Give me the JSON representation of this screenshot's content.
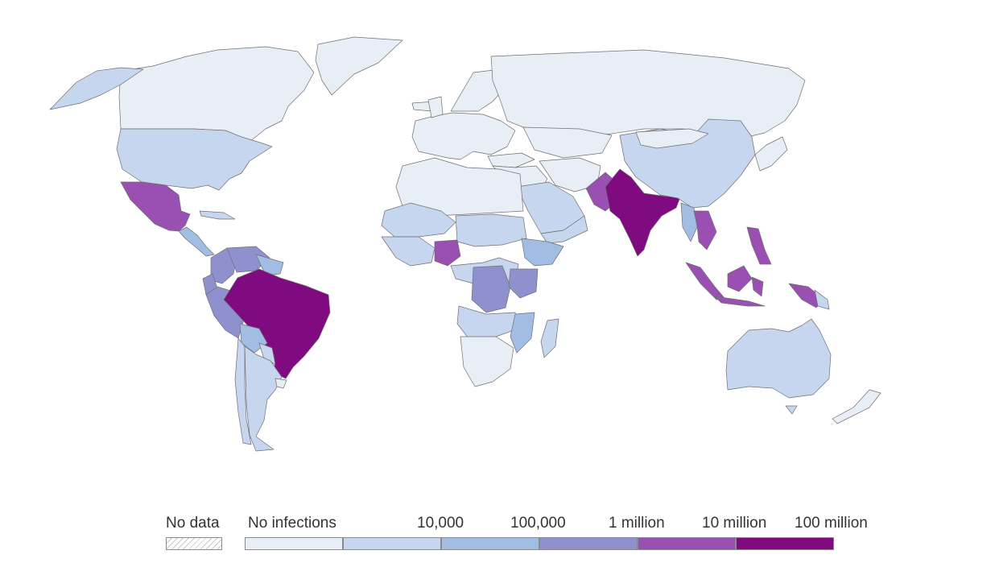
{
  "legend": {
    "no_data_label": "No data",
    "no_infections_label": "No infections",
    "tick_labels": [
      "10,000",
      "100,000",
      "1 million",
      "10 million",
      "100 million"
    ],
    "bins": [
      {
        "name": "no-infections",
        "color": "#e8eef5"
      },
      {
        "name": "bin-1",
        "color": "#c6d6ee"
      },
      {
        "name": "bin-2",
        "color": "#a2bde3"
      },
      {
        "name": "bin-3",
        "color": "#8f91cf"
      },
      {
        "name": "bin-4",
        "color": "#9a4fb3"
      },
      {
        "name": "bin-5",
        "color": "#800a80"
      }
    ]
  },
  "map_colors": {
    "no_data": "#ffffff",
    "ocean": "#ffffff",
    "border": "#6f6f6f"
  }
}
